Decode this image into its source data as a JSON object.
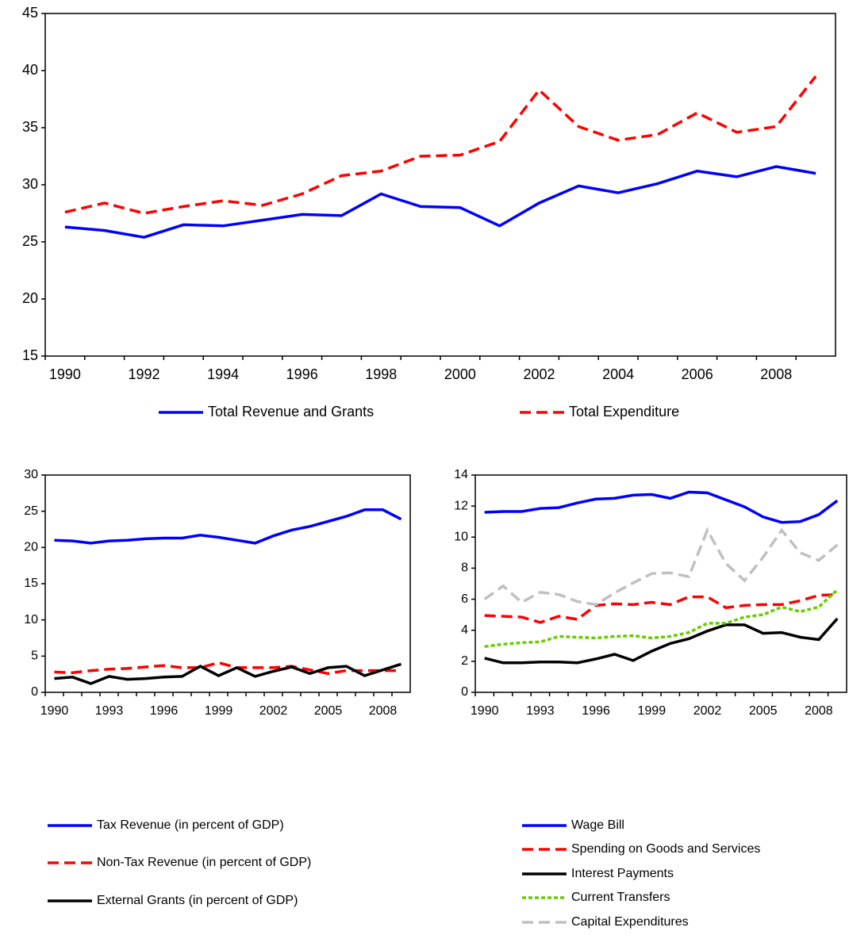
{
  "chart_data": [
    {
      "type": "line",
      "categories": [
        "1990",
        null,
        "1992",
        null,
        "1994",
        null,
        "1996",
        null,
        "1998",
        null,
        "2000",
        null,
        "2002",
        null,
        "2004",
        null,
        "2006",
        null,
        "2008",
        null
      ],
      "ylim": [
        15,
        45
      ],
      "yticks": [
        15,
        20,
        25,
        30,
        35,
        40,
        45
      ],
      "grid": false,
      "series": [
        {
          "name": "Total Revenue and Grants",
          "color": "#0000ff",
          "dash": "solid",
          "values": [
            26.3,
            26.0,
            25.4,
            26.5,
            26.4,
            26.9,
            27.4,
            27.3,
            29.2,
            28.1,
            28.0,
            26.4,
            28.4,
            29.9,
            29.3,
            30.1,
            31.2,
            30.7,
            31.6,
            31.0
          ]
        },
        {
          "name": "Total  Expenditure",
          "color": "#ff0000",
          "dash": "dashed",
          "values": [
            27.6,
            28.4,
            27.5,
            28.1,
            28.6,
            28.2,
            29.2,
            30.8,
            31.2,
            32.5,
            32.6,
            33.8,
            38.3,
            35.1,
            33.9,
            34.4,
            36.3,
            34.6,
            35.1,
            39.5
          ]
        }
      ]
    },
    {
      "type": "line",
      "categories": [
        "1990",
        null,
        null,
        "1993",
        null,
        null,
        "1996",
        null,
        null,
        "1999",
        null,
        null,
        "2002",
        null,
        null,
        "2005",
        null,
        null,
        "2008",
        null
      ],
      "ylim": [
        0,
        30
      ],
      "yticks": [
        0,
        5,
        10,
        15,
        20,
        25,
        30
      ],
      "grid": false,
      "series": [
        {
          "name": "Tax Revenue (in percent of GDP)",
          "color": "#0000ff",
          "dash": "solid",
          "values": [
            21.0,
            20.9,
            20.6,
            20.9,
            21.0,
            21.2,
            21.3,
            21.3,
            21.7,
            21.4,
            21.0,
            20.6,
            21.6,
            22.4,
            22.9,
            23.6,
            24.3,
            25.2,
            25.2,
            23.9
          ]
        },
        {
          "name": "Non-Tax Revenue (in percent of GDP)",
          "color": "#ff0000",
          "dash": "dashed",
          "values": [
            2.8,
            2.7,
            3.0,
            3.2,
            3.3,
            3.5,
            3.7,
            3.4,
            3.4,
            4.1,
            3.4,
            3.4,
            3.4,
            3.6,
            3.1,
            2.6,
            3.0,
            3.0,
            3.0,
            3.0
          ]
        },
        {
          "name": "External Grants (in percent of GDP)",
          "color": "#000000",
          "dash": "solid",
          "values": [
            1.9,
            2.1,
            1.2,
            2.2,
            1.8,
            1.9,
            2.1,
            2.2,
            3.6,
            2.3,
            3.4,
            2.2,
            2.9,
            3.5,
            2.6,
            3.4,
            3.6,
            2.3,
            3.1,
            3.9
          ]
        }
      ]
    },
    {
      "type": "line",
      "categories": [
        "1990",
        null,
        null,
        "1993",
        null,
        null,
        "1996",
        null,
        null,
        "1999",
        null,
        null,
        "2002",
        null,
        null,
        "2005",
        null,
        null,
        "2008",
        null
      ],
      "ylim": [
        0,
        14
      ],
      "yticks": [
        0,
        2,
        4,
        6,
        8,
        10,
        12,
        14
      ],
      "grid": false,
      "series": [
        {
          "name": "Wage Bill",
          "color": "#0000ff",
          "dash": "solid",
          "values": [
            11.6,
            11.65,
            11.65,
            11.85,
            11.9,
            12.2,
            12.45,
            12.5,
            12.7,
            12.75,
            12.5,
            12.9,
            12.85,
            12.4,
            11.95,
            11.3,
            10.95,
            11.0,
            11.45,
            12.35
          ]
        },
        {
          "name": "Spending on Goods and Services",
          "color": "#ff0000",
          "dash": "dashed",
          "values": [
            4.95,
            4.9,
            4.85,
            4.5,
            4.9,
            4.7,
            5.6,
            5.7,
            5.65,
            5.8,
            5.65,
            6.15,
            6.15,
            5.45,
            5.6,
            5.65,
            5.65,
            5.9,
            6.25,
            6.3
          ]
        },
        {
          "name": "Interest Payments",
          "color": "#000000",
          "dash": "solid",
          "values": [
            2.2,
            1.9,
            1.9,
            1.95,
            1.95,
            1.9,
            2.15,
            2.45,
            2.05,
            2.65,
            3.15,
            3.45,
            3.95,
            4.35,
            4.35,
            3.8,
            3.85,
            3.55,
            3.4,
            4.75
          ]
        },
        {
          "name": "Current Transfers",
          "color": "#66cc00",
          "dash": "dotted",
          "values": [
            2.95,
            3.1,
            3.2,
            3.25,
            3.6,
            3.55,
            3.5,
            3.6,
            3.65,
            3.5,
            3.6,
            3.85,
            4.45,
            4.45,
            4.85,
            5.0,
            5.5,
            5.2,
            5.5,
            6.6
          ]
        },
        {
          "name": "Capital Expenditures",
          "color": "#c0c0c0",
          "dash": "dashed",
          "values": [
            6.0,
            6.85,
            5.8,
            6.45,
            6.3,
            5.85,
            5.65,
            6.4,
            7.05,
            7.65,
            7.7,
            7.45,
            10.45,
            8.3,
            7.2,
            8.7,
            10.45,
            9.0,
            8.5,
            9.5
          ]
        }
      ]
    }
  ]
}
